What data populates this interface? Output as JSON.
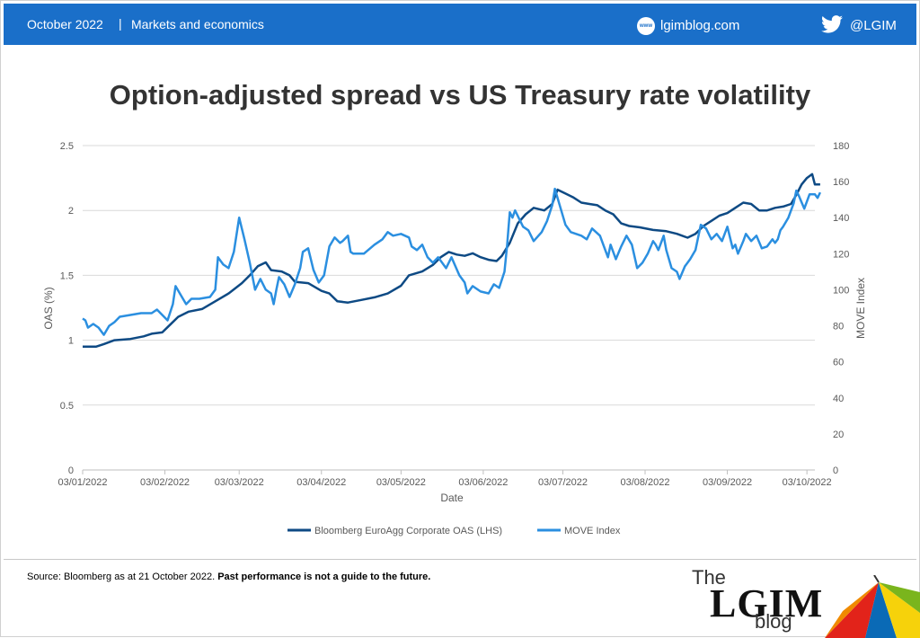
{
  "header": {
    "date": "October 2022",
    "separator": "|",
    "category": "Markets and economics",
    "website": "lgimblog.com",
    "website_icon_text": "www",
    "twitter_handle": "@LGIM",
    "background_color": "#1a6fc9"
  },
  "footer": {
    "source_text": "Source: Bloomberg as at 21 October 2022.",
    "disclaimer": "Past performance is not a guide to the future.",
    "logo_the": "The",
    "logo_lgim": "LGIM",
    "logo_blog": "blog"
  },
  "chart_data": {
    "type": "line",
    "title": "Option-adjusted spread vs US Treasury rate volatility",
    "xlabel": "Date",
    "ylabel_left": "OAS (%)",
    "ylabel_right": "MOVE Index",
    "ylim_left": [
      0,
      2.5
    ],
    "yticks_left": [
      "0",
      "0.5",
      "1",
      "1.5",
      "2",
      "2.5"
    ],
    "ylim_right": [
      0,
      180
    ],
    "yticks_right": [
      "0",
      "20",
      "40",
      "60",
      "80",
      "100",
      "120",
      "140",
      "160",
      "180"
    ],
    "x_tick_labels": [
      "03/01/2022",
      "03/02/2022",
      "03/03/2022",
      "03/04/2022",
      "03/05/2022",
      "03/06/2022",
      "03/07/2022",
      "03/08/2022",
      "03/09/2022",
      "03/10/2022"
    ],
    "x_tick_days": [
      0,
      31,
      59,
      90,
      120,
      151,
      181,
      212,
      243,
      273
    ],
    "x_range_days": [
      0,
      276
    ],
    "legend_position": "bottom",
    "grid": true,
    "series": [
      {
        "name": "Bloomberg EuroAgg Corporate OAS (LHS)",
        "axis": "left",
        "color": "#0e4a84",
        "points": [
          [
            0,
            0.95
          ],
          [
            5,
            0.95
          ],
          [
            8,
            0.97
          ],
          [
            12,
            1.0
          ],
          [
            18,
            1.01
          ],
          [
            23,
            1.03
          ],
          [
            26,
            1.05
          ],
          [
            30,
            1.06
          ],
          [
            33,
            1.12
          ],
          [
            36,
            1.18
          ],
          [
            40,
            1.22
          ],
          [
            45,
            1.24
          ],
          [
            50,
            1.3
          ],
          [
            55,
            1.36
          ],
          [
            60,
            1.44
          ],
          [
            63,
            1.5
          ],
          [
            66,
            1.57
          ],
          [
            69,
            1.6
          ],
          [
            71,
            1.54
          ],
          [
            75,
            1.53
          ],
          [
            78,
            1.5
          ],
          [
            80,
            1.45
          ],
          [
            85,
            1.44
          ],
          [
            90,
            1.38
          ],
          [
            93,
            1.36
          ],
          [
            96,
            1.3
          ],
          [
            100,
            1.29
          ],
          [
            105,
            1.31
          ],
          [
            110,
            1.33
          ],
          [
            115,
            1.36
          ],
          [
            120,
            1.42
          ],
          [
            123,
            1.5
          ],
          [
            128,
            1.53
          ],
          [
            132,
            1.58
          ],
          [
            135,
            1.64
          ],
          [
            138,
            1.68
          ],
          [
            141,
            1.66
          ],
          [
            144,
            1.65
          ],
          [
            147,
            1.67
          ],
          [
            150,
            1.64
          ],
          [
            153,
            1.62
          ],
          [
            156,
            1.61
          ],
          [
            158,
            1.65
          ],
          [
            161,
            1.75
          ],
          [
            164,
            1.9
          ],
          [
            167,
            1.97
          ],
          [
            170,
            2.02
          ],
          [
            174,
            2.0
          ],
          [
            177,
            2.05
          ],
          [
            179,
            2.16
          ],
          [
            182,
            2.13
          ],
          [
            185,
            2.1
          ],
          [
            188,
            2.06
          ],
          [
            191,
            2.05
          ],
          [
            194,
            2.04
          ],
          [
            197,
            2.0
          ],
          [
            200,
            1.97
          ],
          [
            203,
            1.9
          ],
          [
            206,
            1.88
          ],
          [
            210,
            1.87
          ],
          [
            215,
            1.85
          ],
          [
            220,
            1.84
          ],
          [
            224,
            1.82
          ],
          [
            228,
            1.79
          ],
          [
            231,
            1.82
          ],
          [
            234,
            1.88
          ],
          [
            237,
            1.92
          ],
          [
            240,
            1.96
          ],
          [
            243,
            1.98
          ],
          [
            246,
            2.02
          ],
          [
            249,
            2.06
          ],
          [
            252,
            2.05
          ],
          [
            255,
            2.0
          ],
          [
            258,
            2.0
          ],
          [
            261,
            2.02
          ],
          [
            264,
            2.03
          ],
          [
            267,
            2.05
          ],
          [
            269,
            2.12
          ],
          [
            271,
            2.2
          ],
          [
            273,
            2.25
          ],
          [
            275,
            2.28
          ],
          [
            276,
            2.2
          ],
          [
            278,
            2.2
          ]
        ]
      },
      {
        "name": "MOVE Index",
        "axis": "right",
        "color": "#2b8fe0",
        "points": [
          [
            0,
            84
          ],
          [
            1,
            83
          ],
          [
            2,
            79
          ],
          [
            4,
            81
          ],
          [
            6,
            79
          ],
          [
            8,
            75
          ],
          [
            10,
            80
          ],
          [
            12,
            82
          ],
          [
            14,
            85
          ],
          [
            18,
            86
          ],
          [
            22,
            87
          ],
          [
            26,
            87
          ],
          [
            28,
            89
          ],
          [
            30,
            86
          ],
          [
            32,
            83
          ],
          [
            34,
            92
          ],
          [
            35,
            102
          ],
          [
            37,
            97
          ],
          [
            39,
            92
          ],
          [
            41,
            95
          ],
          [
            44,
            95
          ],
          [
            48,
            96
          ],
          [
            50,
            100
          ],
          [
            51,
            118
          ],
          [
            53,
            114
          ],
          [
            55,
            112
          ],
          [
            57,
            121
          ],
          [
            59,
            140
          ],
          [
            61,
            128
          ],
          [
            63,
            115
          ],
          [
            65,
            100
          ],
          [
            67,
            106
          ],
          [
            69,
            100
          ],
          [
            71,
            98
          ],
          [
            72,
            92
          ],
          [
            73,
            100
          ],
          [
            74,
            107
          ],
          [
            76,
            103
          ],
          [
            78,
            96
          ],
          [
            80,
            103
          ],
          [
            82,
            112
          ],
          [
            83,
            121
          ],
          [
            85,
            123
          ],
          [
            87,
            111
          ],
          [
            89,
            104
          ],
          [
            91,
            108
          ],
          [
            93,
            124
          ],
          [
            95,
            129
          ],
          [
            97,
            126
          ],
          [
            98,
            127
          ],
          [
            100,
            130
          ],
          [
            101,
            121
          ],
          [
            102,
            120
          ],
          [
            106,
            120
          ],
          [
            110,
            125
          ],
          [
            113,
            128
          ],
          [
            115,
            132
          ],
          [
            117,
            130
          ],
          [
            120,
            131
          ],
          [
            123,
            129
          ],
          [
            124,
            124
          ],
          [
            126,
            122
          ],
          [
            128,
            125
          ],
          [
            130,
            118
          ],
          [
            132,
            115
          ],
          [
            134,
            118
          ],
          [
            137,
            112
          ],
          [
            139,
            118
          ],
          [
            142,
            108
          ],
          [
            144,
            104
          ],
          [
            145,
            98
          ],
          [
            147,
            102
          ],
          [
            150,
            99
          ],
          [
            153,
            98
          ],
          [
            155,
            103
          ],
          [
            157,
            101
          ],
          [
            159,
            110
          ],
          [
            160,
            125
          ],
          [
            161,
            143
          ],
          [
            162,
            140
          ],
          [
            163,
            144
          ],
          [
            166,
            135
          ],
          [
            168,
            133
          ],
          [
            170,
            127
          ],
          [
            173,
            132
          ],
          [
            175,
            138
          ],
          [
            177,
            147
          ],
          [
            178,
            156
          ],
          [
            180,
            146
          ],
          [
            182,
            136
          ],
          [
            184,
            132
          ],
          [
            186,
            131
          ],
          [
            188,
            130
          ],
          [
            190,
            128
          ],
          [
            192,
            134
          ],
          [
            195,
            130
          ],
          [
            197,
            122
          ],
          [
            198,
            118
          ],
          [
            199,
            125
          ],
          [
            201,
            117
          ],
          [
            203,
            124
          ],
          [
            205,
            130
          ],
          [
            207,
            125
          ],
          [
            209,
            112
          ],
          [
            211,
            115
          ],
          [
            213,
            120
          ],
          [
            215,
            127
          ],
          [
            216,
            125
          ],
          [
            217,
            122
          ],
          [
            219,
            130
          ],
          [
            220,
            122
          ],
          [
            222,
            112
          ],
          [
            224,
            110
          ],
          [
            225,
            106
          ],
          [
            227,
            113
          ],
          [
            229,
            117
          ],
          [
            231,
            122
          ],
          [
            233,
            136
          ],
          [
            235,
            134
          ],
          [
            237,
            128
          ],
          [
            239,
            131
          ],
          [
            241,
            127
          ],
          [
            243,
            135
          ],
          [
            245,
            123
          ],
          [
            246,
            125
          ],
          [
            247,
            120
          ],
          [
            249,
            127
          ],
          [
            250,
            131
          ],
          [
            252,
            127
          ],
          [
            254,
            130
          ],
          [
            256,
            123
          ],
          [
            258,
            124
          ],
          [
            260,
            128
          ],
          [
            261,
            126
          ],
          [
            262,
            128
          ],
          [
            263,
            133
          ],
          [
            264,
            135
          ],
          [
            266,
            140
          ],
          [
            268,
            148
          ],
          [
            269,
            155
          ],
          [
            270,
            152
          ],
          [
            272,
            145
          ],
          [
            274,
            153
          ],
          [
            276,
            153
          ],
          [
            277,
            151
          ],
          [
            278,
            154
          ]
        ]
      }
    ]
  }
}
